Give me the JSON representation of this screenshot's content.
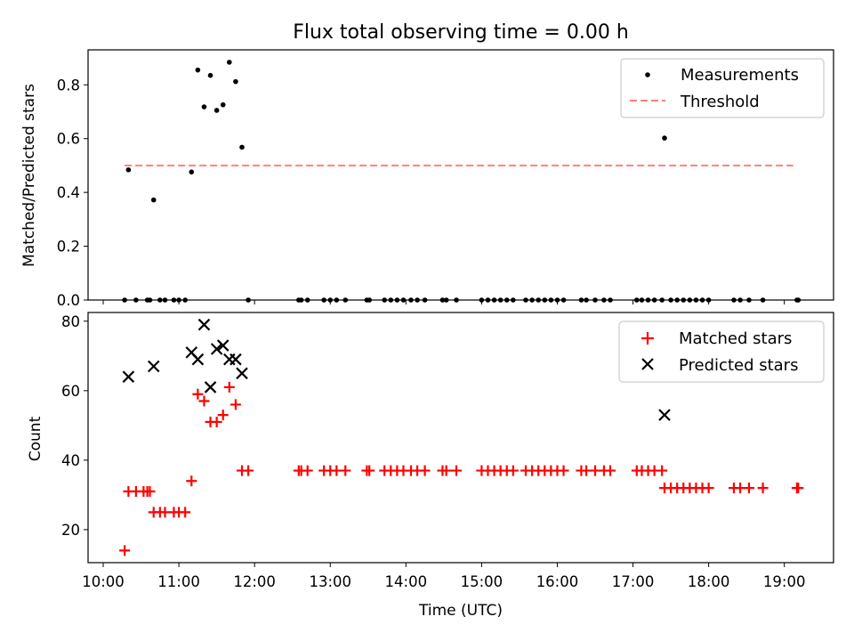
{
  "figure": {
    "title": "Flux total observing time = 0.00 h",
    "x_label": "Time (UTC)",
    "x_ticks": [
      "10:00",
      "11:00",
      "12:00",
      "13:00",
      "14:00",
      "15:00",
      "16:00",
      "17:00",
      "18:00",
      "19:00"
    ]
  },
  "chart_data": [
    {
      "type": "scatter",
      "title": "Flux total observing time = 0.00 h",
      "ylabel": "Matched/Predicted stars",
      "xlim_hours": [
        9.8,
        19.65
      ],
      "ylim": [
        0,
        0.93
      ],
      "y_ticks": [
        "0.0",
        "0.2",
        "0.4",
        "0.6",
        "0.8"
      ],
      "y_tick_values": [
        0,
        0.2,
        0.4,
        0.6,
        0.8
      ],
      "legend": {
        "placement": "top-right",
        "entries": [
          "Measurements",
          "Threshold"
        ]
      },
      "colors": {
        "measurements": "#000000",
        "threshold": "#ff7f7f"
      },
      "threshold": {
        "name": "Threshold",
        "value": 0.5,
        "x_start": "10:17",
        "x_end": "19:07"
      },
      "series": [
        {
          "name": "Measurements",
          "points": [
            [
              "10:17",
              0
            ],
            [
              "10:20",
              0.484
            ],
            [
              "10:26",
              0
            ],
            [
              "10:35",
              0
            ],
            [
              "10:37",
              0
            ],
            [
              "10:40",
              0.372
            ],
            [
              "10:45",
              0
            ],
            [
              "10:49",
              0
            ],
            [
              "10:56",
              0
            ],
            [
              "11:00",
              0
            ],
            [
              "11:05",
              0
            ],
            [
              "11:10",
              0.476
            ],
            [
              "11:15",
              0.855
            ],
            [
              "11:20",
              0.718
            ],
            [
              "11:25",
              0.835
            ],
            [
              "11:30",
              0.705
            ],
            [
              "11:35",
              0.726
            ],
            [
              "11:40",
              0.884
            ],
            [
              "11:45",
              0.812
            ],
            [
              "11:50",
              0.568
            ],
            [
              "11:55",
              0
            ],
            [
              "12:35",
              0
            ],
            [
              "12:37",
              0
            ],
            [
              "12:42",
              0
            ],
            [
              "12:55",
              0
            ],
            [
              "13:00",
              0
            ],
            [
              "13:05",
              0
            ],
            [
              "13:12",
              0
            ],
            [
              "13:29",
              0
            ],
            [
              "13:31",
              0
            ],
            [
              "13:43",
              0
            ],
            [
              "13:48",
              0
            ],
            [
              "13:53",
              0
            ],
            [
              "13:58",
              0
            ],
            [
              "14:04",
              0
            ],
            [
              "14:09",
              0
            ],
            [
              "14:15",
              0
            ],
            [
              "14:29",
              0
            ],
            [
              "14:32",
              0
            ],
            [
              "14:40",
              0
            ],
            [
              "15:00",
              0
            ],
            [
              "15:05",
              0
            ],
            [
              "15:10",
              0
            ],
            [
              "15:15",
              0
            ],
            [
              "15:20",
              0
            ],
            [
              "15:25",
              0
            ],
            [
              "15:35",
              0
            ],
            [
              "15:40",
              0
            ],
            [
              "15:45",
              0
            ],
            [
              "15:50",
              0
            ],
            [
              "15:55",
              0
            ],
            [
              "16:00",
              0
            ],
            [
              "16:05",
              0
            ],
            [
              "16:19",
              0
            ],
            [
              "16:23",
              0
            ],
            [
              "16:30",
              0
            ],
            [
              "16:37",
              0
            ],
            [
              "16:42",
              0
            ],
            [
              "17:03",
              0
            ],
            [
              "17:07",
              0
            ],
            [
              "17:12",
              0
            ],
            [
              "17:17",
              0
            ],
            [
              "17:23",
              0
            ],
            [
              "17:25",
              0.602
            ],
            [
              "17:30",
              0
            ],
            [
              "17:35",
              0
            ],
            [
              "17:40",
              0
            ],
            [
              "17:45",
              0
            ],
            [
              "17:50",
              0
            ],
            [
              "17:55",
              0
            ],
            [
              "18:00",
              0
            ],
            [
              "18:20",
              0
            ],
            [
              "18:25",
              0
            ],
            [
              "18:32",
              0
            ],
            [
              "18:43",
              0
            ],
            [
              "19:10",
              0
            ],
            [
              "19:11",
              0
            ]
          ]
        }
      ]
    },
    {
      "type": "scatter",
      "ylabel": "Count",
      "xlabel": "Time (UTC)",
      "xlim_hours": [
        9.8,
        19.65
      ],
      "ylim": [
        10.5,
        82.5
      ],
      "y_ticks": [
        "20",
        "40",
        "60",
        "80"
      ],
      "y_tick_values": [
        20,
        40,
        60,
        80
      ],
      "legend": {
        "placement": "top-right",
        "entries": [
          "Matched stars",
          "Predicted stars"
        ]
      },
      "colors": {
        "matched": "#ff0000",
        "predicted": "#000000"
      },
      "series": [
        {
          "name": "Matched stars",
          "points": [
            [
              "10:17",
              14
            ],
            [
              "10:20",
              31
            ],
            [
              "10:26",
              31
            ],
            [
              "10:32",
              31
            ],
            [
              "10:35",
              31
            ],
            [
              "10:37",
              31
            ],
            [
              "10:40",
              25
            ],
            [
              "10:45",
              25
            ],
            [
              "10:49",
              25
            ],
            [
              "10:56",
              25
            ],
            [
              "11:00",
              25
            ],
            [
              "11:05",
              25
            ],
            [
              "11:10",
              34
            ],
            [
              "11:15",
              59
            ],
            [
              "11:20",
              57
            ],
            [
              "11:25",
              51
            ],
            [
              "11:30",
              51
            ],
            [
              "11:35",
              53
            ],
            [
              "11:40",
              61
            ],
            [
              "11:45",
              56
            ],
            [
              "11:50",
              37
            ],
            [
              "11:55",
              37
            ],
            [
              "12:35",
              37
            ],
            [
              "12:37",
              37
            ],
            [
              "12:42",
              37
            ],
            [
              "12:55",
              37
            ],
            [
              "13:00",
              37
            ],
            [
              "13:05",
              37
            ],
            [
              "13:12",
              37
            ],
            [
              "13:29",
              37
            ],
            [
              "13:31",
              37
            ],
            [
              "13:43",
              37
            ],
            [
              "13:48",
              37
            ],
            [
              "13:53",
              37
            ],
            [
              "13:58",
              37
            ],
            [
              "14:04",
              37
            ],
            [
              "14:09",
              37
            ],
            [
              "14:15",
              37
            ],
            [
              "14:29",
              37
            ],
            [
              "14:32",
              37
            ],
            [
              "14:40",
              37
            ],
            [
              "15:00",
              37
            ],
            [
              "15:05",
              37
            ],
            [
              "15:10",
              37
            ],
            [
              "15:15",
              37
            ],
            [
              "15:20",
              37
            ],
            [
              "15:25",
              37
            ],
            [
              "15:35",
              37
            ],
            [
              "15:40",
              37
            ],
            [
              "15:45",
              37
            ],
            [
              "15:50",
              37
            ],
            [
              "15:55",
              37
            ],
            [
              "16:00",
              37
            ],
            [
              "16:05",
              37
            ],
            [
              "16:19",
              37
            ],
            [
              "16:23",
              37
            ],
            [
              "16:30",
              37
            ],
            [
              "16:37",
              37
            ],
            [
              "16:42",
              37
            ],
            [
              "17:03",
              37
            ],
            [
              "17:07",
              37
            ],
            [
              "17:12",
              37
            ],
            [
              "17:17",
              37
            ],
            [
              "17:23",
              37
            ],
            [
              "17:25",
              32
            ],
            [
              "17:30",
              32
            ],
            [
              "17:35",
              32
            ],
            [
              "17:40",
              32
            ],
            [
              "17:45",
              32
            ],
            [
              "17:50",
              32
            ],
            [
              "17:55",
              32
            ],
            [
              "18:00",
              32
            ],
            [
              "18:20",
              32
            ],
            [
              "18:25",
              32
            ],
            [
              "18:32",
              32
            ],
            [
              "18:43",
              32
            ],
            [
              "19:10",
              32
            ],
            [
              "19:11",
              32
            ]
          ]
        },
        {
          "name": "Predicted stars",
          "points": [
            [
              "10:20",
              64
            ],
            [
              "10:40",
              67
            ],
            [
              "11:10",
              71
            ],
            [
              "11:15",
              69
            ],
            [
              "11:20",
              79
            ],
            [
              "11:25",
              61
            ],
            [
              "11:30",
              72
            ],
            [
              "11:35",
              73
            ],
            [
              "11:40",
              69
            ],
            [
              "11:45",
              69
            ],
            [
              "11:50",
              65
            ],
            [
              "17:25",
              53
            ]
          ]
        }
      ]
    }
  ]
}
